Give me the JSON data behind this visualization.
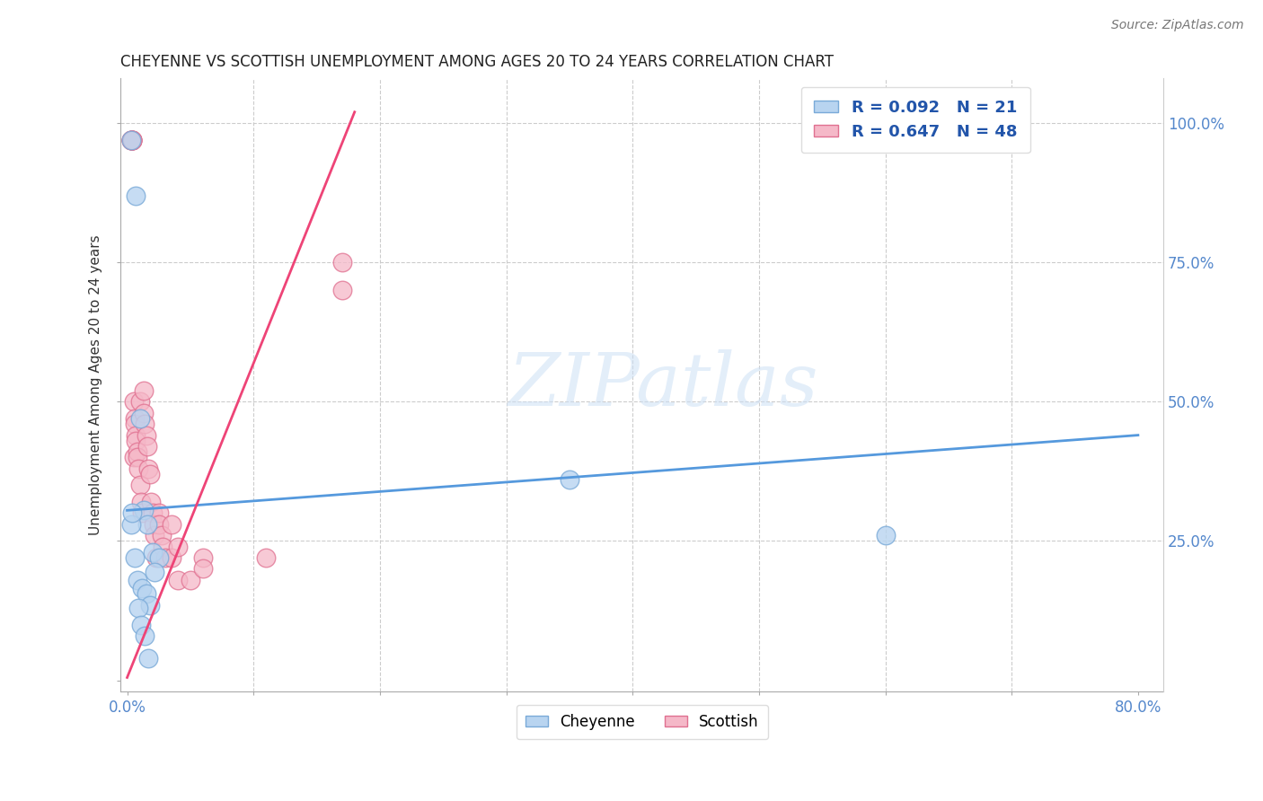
{
  "title": "CHEYENNE VS SCOTTISH UNEMPLOYMENT AMONG AGES 20 TO 24 YEARS CORRELATION CHART",
  "source": "Source: ZipAtlas.com",
  "ylabel": "Unemployment Among Ages 20 to 24 years",
  "xlim": [
    -0.005,
    0.82
  ],
  "ylim": [
    -0.02,
    1.08
  ],
  "cheyenne_color": "#b8d4f0",
  "cheyenne_edge": "#7aaad8",
  "scottish_color": "#f5b8c8",
  "scottish_edge": "#e07090",
  "cheyenne_line_color": "#5599dd",
  "scottish_line_color": "#ee4477",
  "legend_R_cheyenne": "0.092",
  "legend_N_cheyenne": "21",
  "legend_R_scottish": "0.647",
  "legend_N_scottish": "48",
  "watermark": "ZIPatlas",
  "cheyenne_line_x0": 0.0,
  "cheyenne_line_y0": 0.305,
  "cheyenne_line_x1": 0.8,
  "cheyenne_line_y1": 0.44,
  "scottish_line_x0": 0.0,
  "scottish_line_y0": 0.005,
  "scottish_line_x1": 0.18,
  "scottish_line_y1": 1.02,
  "cheyenne_x": [
    0.003,
    0.007,
    0.01,
    0.013,
    0.016,
    0.02,
    0.025,
    0.003,
    0.006,
    0.008,
    0.012,
    0.015,
    0.018,
    0.022,
    0.004,
    0.009,
    0.011,
    0.014,
    0.017,
    0.35,
    0.6
  ],
  "cheyenne_y": [
    0.97,
    0.87,
    0.47,
    0.305,
    0.28,
    0.23,
    0.22,
    0.28,
    0.22,
    0.18,
    0.165,
    0.155,
    0.135,
    0.195,
    0.3,
    0.13,
    0.1,
    0.08,
    0.04,
    0.36,
    0.26
  ],
  "scottish_x": [
    0.003,
    0.003,
    0.003,
    0.004,
    0.004,
    0.004,
    0.004,
    0.004,
    0.005,
    0.005,
    0.006,
    0.006,
    0.007,
    0.007,
    0.008,
    0.008,
    0.009,
    0.01,
    0.01,
    0.011,
    0.012,
    0.013,
    0.013,
    0.014,
    0.015,
    0.016,
    0.017,
    0.018,
    0.019,
    0.02,
    0.021,
    0.022,
    0.023,
    0.025,
    0.025,
    0.027,
    0.028,
    0.03,
    0.035,
    0.035,
    0.04,
    0.04,
    0.05,
    0.06,
    0.06,
    0.11,
    0.17,
    0.17
  ],
  "scottish_y": [
    0.97,
    0.97,
    0.97,
    0.97,
    0.97,
    0.97,
    0.97,
    0.97,
    0.5,
    0.4,
    0.47,
    0.46,
    0.44,
    0.43,
    0.41,
    0.4,
    0.38,
    0.5,
    0.35,
    0.32,
    0.3,
    0.52,
    0.48,
    0.46,
    0.44,
    0.42,
    0.38,
    0.37,
    0.32,
    0.3,
    0.28,
    0.26,
    0.22,
    0.3,
    0.28,
    0.26,
    0.24,
    0.22,
    0.28,
    0.22,
    0.18,
    0.24,
    0.18,
    0.22,
    0.2,
    0.22,
    0.75,
    0.7
  ]
}
